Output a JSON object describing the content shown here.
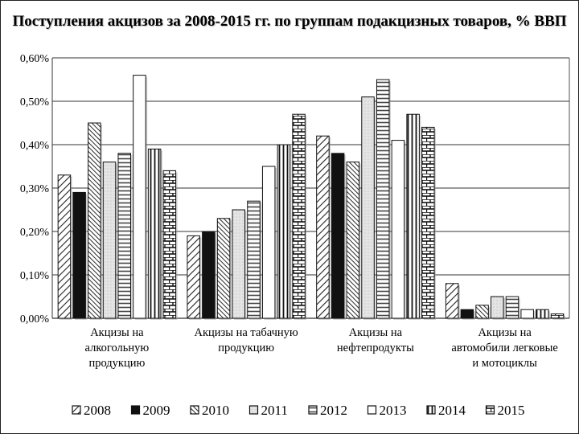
{
  "chart_data": {
    "type": "bar",
    "title": "Поступления акцизов за 2008-2015 гг. по группам подакцизных товаров, % ВВП",
    "xlabel": "",
    "ylabel": "",
    "ylim": [
      0,
      0.6
    ],
    "y_ticks": [
      "0,00%",
      "0,10%",
      "0,20%",
      "0,30%",
      "0,40%",
      "0,50%",
      "0,60%"
    ],
    "grid": true,
    "legend_position": "bottom",
    "categories": [
      [
        "Акцизы на",
        "алкогольную",
        "продукцию"
      ],
      [
        "Акцизы на табачную",
        "продукцию"
      ],
      [
        "Акцизы на",
        "нефтепродукты"
      ],
      [
        "Акцизы на",
        "автомобили легковые",
        "и мотоциклы"
      ]
    ],
    "series": [
      {
        "name": "2008",
        "pattern": "diagonal",
        "values": [
          0.33,
          0.19,
          0.42,
          0.08
        ]
      },
      {
        "name": "2009",
        "pattern": "solid",
        "values": [
          0.29,
          0.2,
          0.38,
          0.02
        ]
      },
      {
        "name": "2010",
        "pattern": "dense-diagonal",
        "values": [
          0.45,
          0.23,
          0.36,
          0.03
        ]
      },
      {
        "name": "2011",
        "pattern": "light",
        "values": [
          0.36,
          0.25,
          0.51,
          0.05
        ]
      },
      {
        "name": "2012",
        "pattern": "horizontal",
        "values": [
          0.38,
          0.27,
          0.55,
          0.05
        ]
      },
      {
        "name": "2013",
        "pattern": "white",
        "values": [
          0.56,
          0.35,
          0.41,
          0.02
        ]
      },
      {
        "name": "2014",
        "pattern": "vertical",
        "values": [
          0.39,
          0.4,
          0.47,
          0.02
        ]
      },
      {
        "name": "2015",
        "pattern": "brick",
        "values": [
          0.34,
          0.47,
          0.44,
          0.01
        ]
      }
    ]
  }
}
